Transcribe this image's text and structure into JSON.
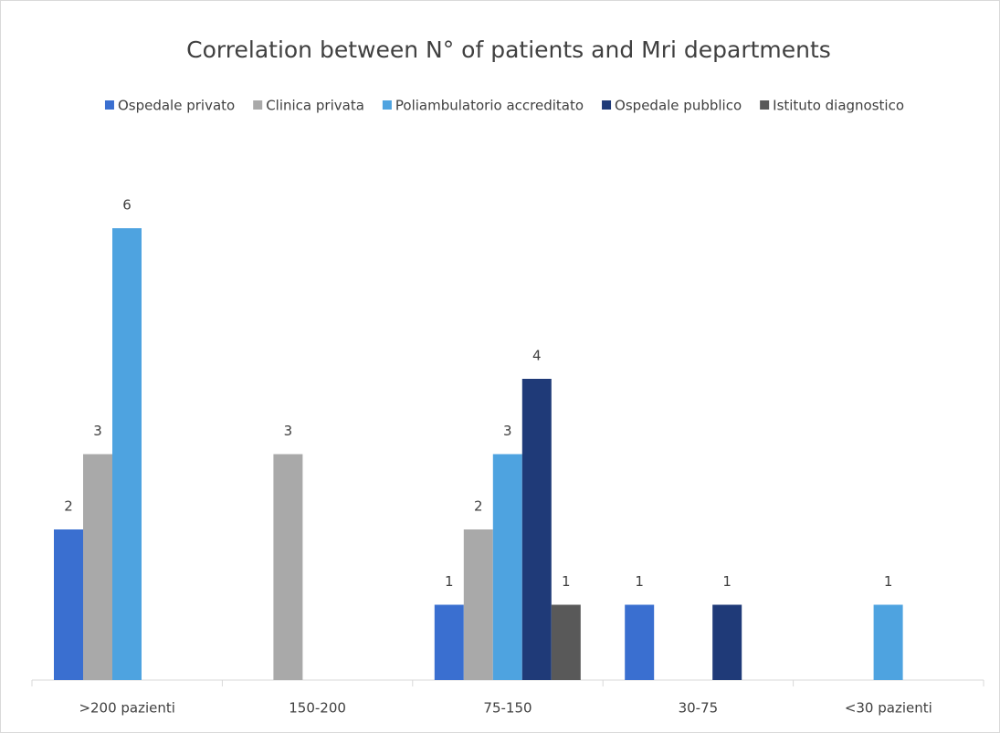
{
  "chart_data": {
    "type": "bar",
    "title": "Correlation between N° of patients and Mri departments",
    "categories": [
      ">200 pazienti",
      "150-200",
      "75-150",
      "30-75",
      "<30 pazienti"
    ],
    "series": [
      {
        "name": "Ospedale privato",
        "color": "#3a6fd0",
        "values": [
          2,
          null,
          1,
          1,
          null
        ]
      },
      {
        "name": "Clinica privata",
        "color": "#a9a9a9",
        "values": [
          3,
          3,
          2,
          null,
          null
        ]
      },
      {
        "name": "Poliambulatorio accreditato",
        "color": "#4ea3e0",
        "values": [
          6,
          null,
          3,
          null,
          1
        ]
      },
      {
        "name": "Ospedale pubblico",
        "color": "#1f3a78",
        "values": [
          null,
          null,
          4,
          1,
          null
        ]
      },
      {
        "name": "Istituto diagnostico",
        "color": "#595959",
        "values": [
          null,
          null,
          1,
          null,
          null
        ]
      }
    ],
    "legend": "top"
  }
}
